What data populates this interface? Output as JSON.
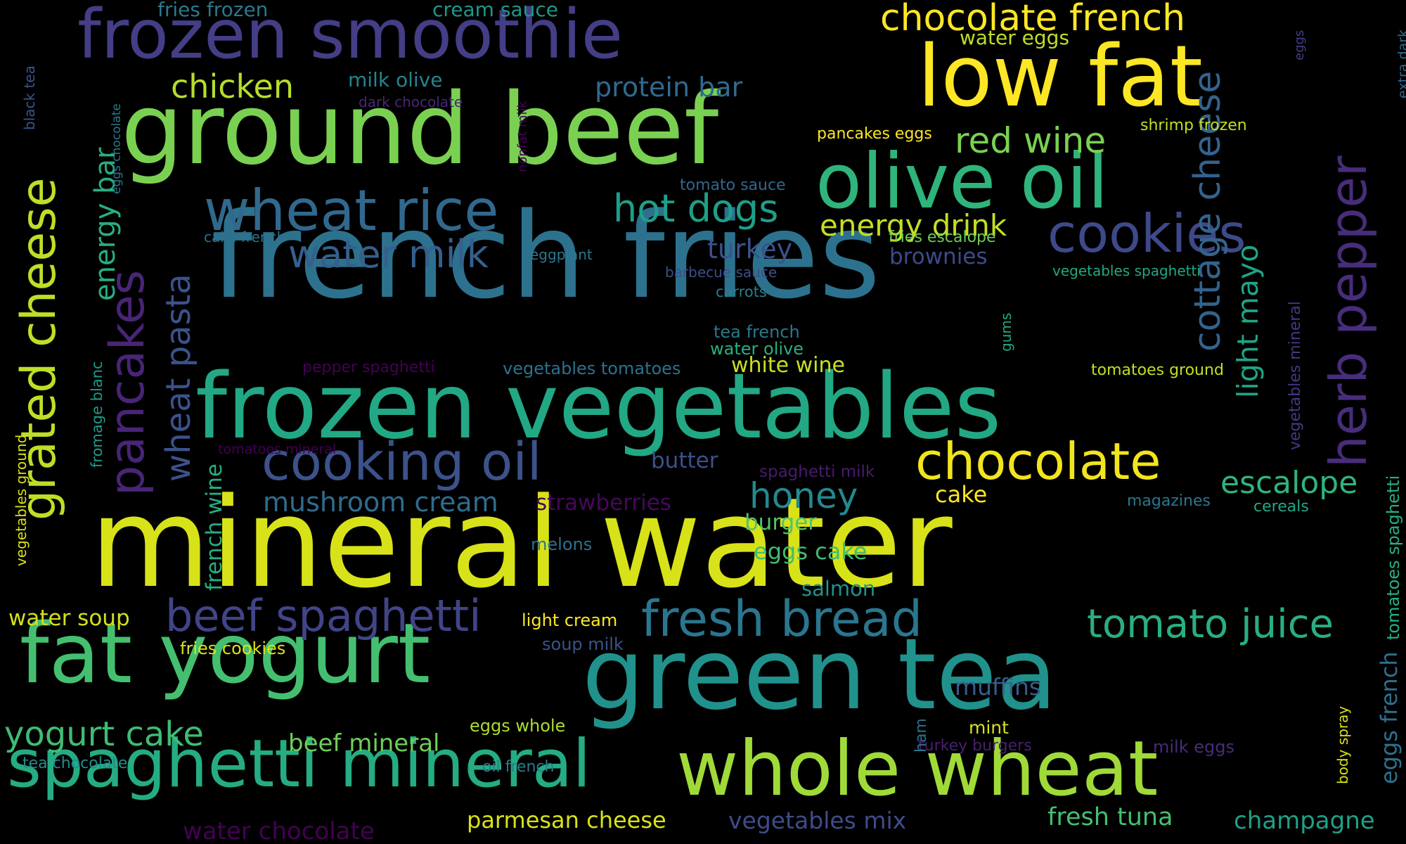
{
  "palette": {
    "background": "#000000"
  },
  "words": [
    {
      "text": "mineral water",
      "color": "#d8e219"
    },
    {
      "text": "french fries",
      "color": "#2c728e"
    },
    {
      "text": "green tea",
      "color": "#21918c"
    },
    {
      "text": "frozen vegetables",
      "color": "#22a884"
    },
    {
      "text": "ground beef",
      "color": "#7ad151"
    },
    {
      "text": "whole wheat",
      "color": "#a0da39"
    },
    {
      "text": "fat yogurt",
      "color": "#44bf70"
    },
    {
      "text": "frozen smoothie",
      "color": "#433e85"
    },
    {
      "text": "low fat",
      "color": "#fde725"
    },
    {
      "text": "olive oil",
      "color": "#2fb47c"
    },
    {
      "text": "spaghetti mineral",
      "color": "#25ac82"
    },
    {
      "text": "cooking oil",
      "color": "#3b528b"
    },
    {
      "text": "wheat rice",
      "color": "#31688e"
    },
    {
      "text": "chocolate",
      "color": "#f1e51d"
    },
    {
      "text": "cookies",
      "color": "#3e4989"
    },
    {
      "text": "fresh bread",
      "color": "#2a768e"
    },
    {
      "text": "beef spaghetti",
      "color": "#414487"
    },
    {
      "text": "herb pepper",
      "color": "#472d7b"
    },
    {
      "text": "grated cheese",
      "color": "#bddf26"
    },
    {
      "text": "pancakes",
      "color": "#482576"
    },
    {
      "text": "tomato juice",
      "color": "#29af7f"
    },
    {
      "text": "cottage cheese",
      "color": "#33638d"
    },
    {
      "text": "chocolate french",
      "color": "#fde725"
    },
    {
      "text": "hot dogs",
      "color": "#1f9e89"
    },
    {
      "text": "red wine",
      "color": "#7ad151"
    },
    {
      "text": "water milk",
      "color": "#355f8d"
    },
    {
      "text": "wheat pasta",
      "color": "#3b528b"
    },
    {
      "text": "honey",
      "color": "#23898e"
    },
    {
      "text": "escalope",
      "color": "#2fb47c"
    },
    {
      "text": "yogurt cake",
      "color": "#3fbc73"
    },
    {
      "text": "chicken",
      "color": "#b5de2b"
    },
    {
      "text": "energy drink",
      "color": "#c2df23"
    },
    {
      "text": "light mayo",
      "color": "#20a486"
    },
    {
      "text": "energy bar",
      "color": "#28ae80"
    },
    {
      "text": "mushroom cream",
      "color": "#2f6c8e"
    },
    {
      "text": "protein bar",
      "color": "#306a8e"
    },
    {
      "text": "parmesan cheese",
      "color": "#d8e219"
    },
    {
      "text": "vegetables mix",
      "color": "#3e4c8a"
    },
    {
      "text": "fresh tuna",
      "color": "#44bf70"
    },
    {
      "text": "champagne",
      "color": "#1fa088"
    },
    {
      "text": "beef mineral",
      "color": "#6ece58"
    },
    {
      "text": "water chocolate",
      "color": "#440154"
    },
    {
      "text": "turkey",
      "color": "#3b528b"
    },
    {
      "text": "muffins",
      "color": "#355f8d"
    },
    {
      "text": "white wine",
      "color": "#c8e020"
    },
    {
      "text": "water soup",
      "color": "#d0e11c"
    },
    {
      "text": "french wine",
      "color": "#26ad81"
    },
    {
      "text": "butter",
      "color": "#3b518b"
    },
    {
      "text": "eggs french",
      "color": "#2d708e"
    },
    {
      "text": "brownies",
      "color": "#3e4a89"
    },
    {
      "text": "burger",
      "color": "#50c46a"
    },
    {
      "text": "eggs cake",
      "color": "#40bd72"
    },
    {
      "text": "salmon",
      "color": "#20928c"
    },
    {
      "text": "cake",
      "color": "#fde725"
    },
    {
      "text": "milk olive",
      "color": "#25848e"
    },
    {
      "text": "water eggs",
      "color": "#bddf26"
    },
    {
      "text": "strawberries",
      "color": "#46085c"
    },
    {
      "text": "fries frozen",
      "color": "#2a788e"
    },
    {
      "text": "cream sauce",
      "color": "#1f968b"
    },
    {
      "text": "light cream",
      "color": "#fde725"
    },
    {
      "text": "fries cookies",
      "color": "#dde318"
    },
    {
      "text": "soup milk",
      "color": "#3b528b"
    },
    {
      "text": "eggs whole",
      "color": "#addc30"
    },
    {
      "text": "tea chocolate",
      "color": "#228c8d"
    },
    {
      "text": "oil french",
      "color": "#287c8e"
    },
    {
      "text": "mint",
      "color": "#d2e21b"
    },
    {
      "text": "milk eggs",
      "color": "#472c7a"
    },
    {
      "text": "turkey burgers",
      "color": "#481f70"
    },
    {
      "text": "ham",
      "color": "#2c718e"
    },
    {
      "text": "body spray",
      "color": "#d8e219"
    },
    {
      "text": "tomatoes spaghetti",
      "color": "#29af7f"
    },
    {
      "text": "cereals",
      "color": "#22a884"
    },
    {
      "text": "magazines",
      "color": "#2a768e"
    },
    {
      "text": "spaghetti milk",
      "color": "#481b6d"
    },
    {
      "text": "melons",
      "color": "#2c718e"
    },
    {
      "text": "gums",
      "color": "#22a884"
    },
    {
      "text": "tomatoes ground",
      "color": "#c2df23"
    },
    {
      "text": "vegetables mineral",
      "color": "#453882"
    },
    {
      "text": "vegetables spaghetti",
      "color": "#22a884"
    },
    {
      "text": "shrimp frozen",
      "color": "#c2df23"
    },
    {
      "text": "pancakes eggs",
      "color": "#fde725"
    },
    {
      "text": "tomato sauce",
      "color": "#31678e"
    },
    {
      "text": "barbecue sauce",
      "color": "#3d4e8a"
    },
    {
      "text": "carrots",
      "color": "#297b8e"
    },
    {
      "text": "tea french",
      "color": "#2a788e"
    },
    {
      "text": "water olive",
      "color": "#2ab07f"
    },
    {
      "text": "vegetables tomatoes",
      "color": "#2c718e"
    },
    {
      "text": "pepper spaghetti",
      "color": "#440154"
    },
    {
      "text": "fries escalope",
      "color": "#6ece58"
    },
    {
      "text": "eggplant",
      "color": "#2a788e"
    },
    {
      "text": "cake french",
      "color": "#2c718e"
    },
    {
      "text": "dark chocolate",
      "color": "#482677"
    },
    {
      "text": "nonfat milk",
      "color": "#440154"
    },
    {
      "text": "eggs chocolate",
      "color": "#2a788e"
    },
    {
      "text": "fromage blanc",
      "color": "#1f9a8a"
    },
    {
      "text": "tomatoes mineral",
      "color": "#440154"
    },
    {
      "text": "vegetables ground",
      "color": "#d8e219"
    },
    {
      "text": "black tea",
      "color": "#3b528b"
    },
    {
      "text": "extra dark",
      "color": "#31688e"
    },
    {
      "text": "eggs",
      "color": "#433e85"
    }
  ]
}
